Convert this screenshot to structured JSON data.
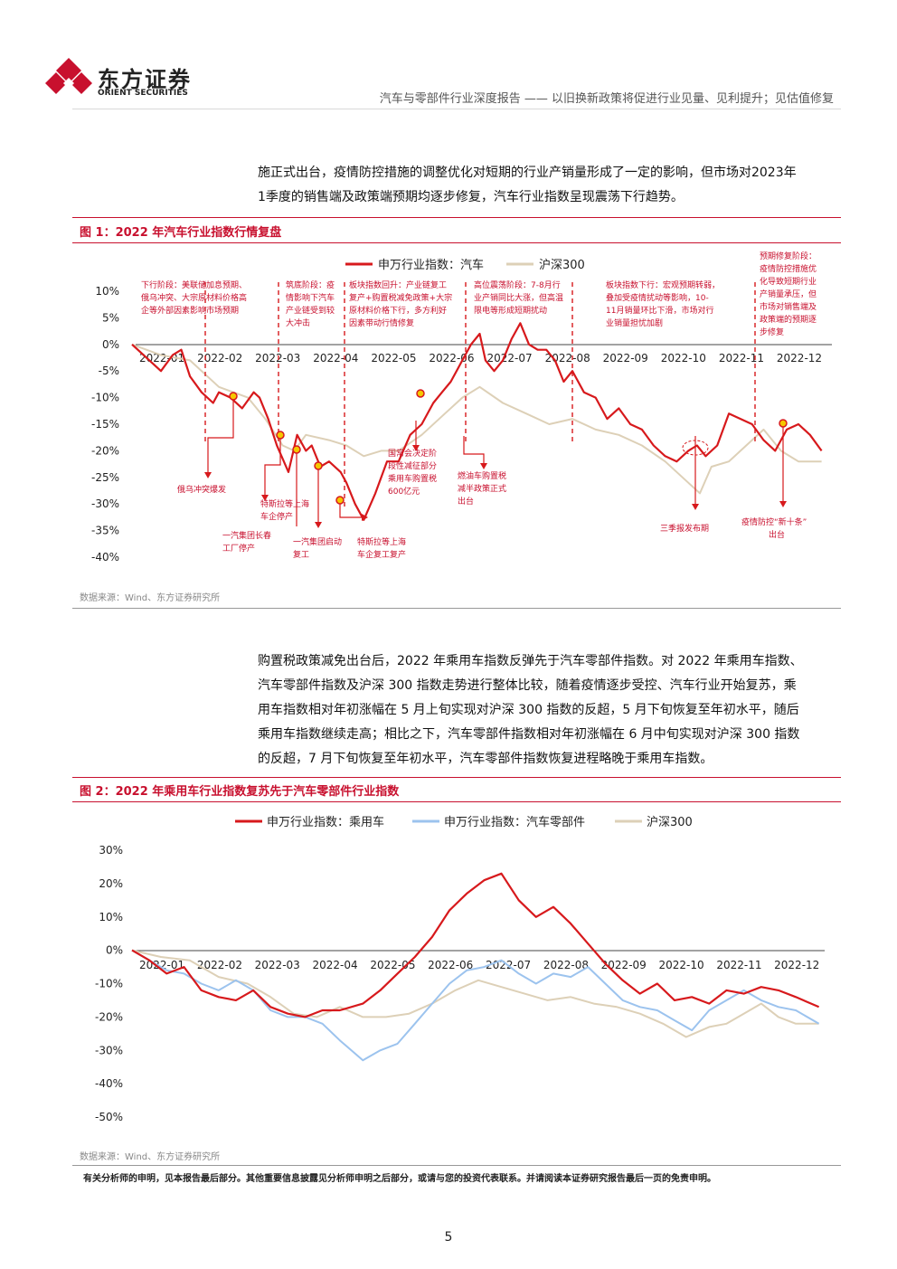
{
  "header": {
    "logo_cn": "东方证券",
    "logo_en": "ORIENT SECURITIES",
    "report_title": "汽车与零部件行业深度报告 —— 以旧换新政策将促进行业见量、见利提升；见估值修复"
  },
  "colors": {
    "brand_red": "#c8102e",
    "hs300": "#ddd0b7",
    "parts_blue": "#9cc3ee"
  },
  "paragraph1": [
    "施正式出台，疫情防控措施的调整优化对短期的行业产销量形成了一定的影响，但市场对2023年",
    "1季度的销售端及政策端预期均逐步修复，汽车行业指数呈现震荡下行趋势。"
  ],
  "figure1": {
    "title": "图 1：2022 年汽车行业指数行情复盘",
    "source": "数据来源：Wind、东方证券研究所"
  },
  "paragraph2": [
    "购置税政策减免出台后，2022 年乘用车指数反弹先于汽车零部件指数。对 2022 年乘用车指数、",
    "汽车零部件指数及沪深 300 指数走势进行整体比较，随着疫情逐步受控、汽车行业开始复苏，乘",
    "用车指数相对年初涨幅在 5 月上旬实现对沪深 300 指数的反超，5 月下旬恢复至年初水平，随后",
    "乘用车指数继续走高；相比之下，汽车零部件指数相对年初涨幅在 6 月中旬实现对沪深 300 指数",
    "的反超，7 月下旬恢复至年初水平，汽车零部件指数恢复进程略晚于乘用车指数。"
  ],
  "figure2": {
    "title": "图 2：2022 年乘用车行业指数复苏先于汽车零部件行业指数",
    "source": "数据来源：Wind、东方证券研究所"
  },
  "footer": {
    "disclaimer": "有关分析师的申明，见本报告最后部分。其他重要信息披露见分析师申明之后部分，或请与您的投资代表联系。并请阅读本证券研究报告最后一页的免责申明。",
    "page_number": "5"
  },
  "chart_data": [
    {
      "type": "line",
      "x_ticks": [
        "2022-01",
        "2022-02",
        "2022-03",
        "2022-04",
        "2022-05",
        "2022-06",
        "2022-07",
        "2022-08",
        "2022-09",
        "2022-10",
        "2022-11",
        "2022-12"
      ],
      "y_ticks": [
        "10%",
        "5%",
        "0%",
        "-5%",
        "-10%",
        "-15%",
        "-20%",
        "-25%",
        "-30%",
        "-35%",
        "-40%"
      ],
      "ylim": [
        -40,
        10
      ],
      "legend_position": "top",
      "series": [
        {
          "name": "申万行业指数：汽车",
          "color": "#d7191c",
          "x": [
            0,
            0.3,
            0.5,
            0.7,
            0.85,
            1.0,
            1.2,
            1.4,
            1.5,
            1.7,
            1.9,
            2.1,
            2.2,
            2.35,
            2.5,
            2.7,
            2.85,
            3.0,
            3.1,
            3.25,
            3.4,
            3.6,
            3.7,
            3.85,
            4.0,
            4.2,
            4.4,
            4.6,
            4.8,
            5.0,
            5.2,
            5.35,
            5.5,
            5.7,
            5.85,
            6.0,
            6.1,
            6.25,
            6.4,
            6.55,
            6.7,
            6.85,
            7.0,
            7.15,
            7.3,
            7.45,
            7.6,
            7.8,
            8.0,
            8.2,
            8.4,
            8.6,
            8.8,
            9.0,
            9.2,
            9.4,
            9.6,
            9.75,
            9.9,
            10.1,
            10.3,
            10.5,
            10.7,
            10.9,
            11.1,
            11.3,
            11.5,
            11.7,
            11.9
          ],
          "y": [
            0,
            -3,
            -5,
            -2,
            -1,
            -6,
            -9,
            -11,
            -9,
            -10,
            -12,
            -9,
            -10,
            -14,
            -19,
            -24,
            -17,
            -20,
            -19,
            -23,
            -22,
            -24,
            -26,
            -30,
            -33,
            -28,
            -22,
            -22,
            -17,
            -15,
            -11,
            -9,
            -7,
            -3,
            0,
            2,
            -3,
            -5,
            -3,
            1,
            4,
            0,
            -1,
            -1,
            -3,
            -7,
            -5,
            -9,
            -10,
            -14,
            -12,
            -15,
            -16,
            -19,
            -21,
            -22,
            -20,
            -19,
            -21,
            -19,
            -13,
            -14,
            -15,
            -18,
            -20,
            -16,
            -15,
            -17,
            -20
          ]
        },
        {
          "name": "沪深300",
          "color": "#ddd0b7",
          "x": [
            0,
            0.5,
            1.0,
            1.5,
            2.0,
            2.3,
            2.6,
            2.8,
            3.0,
            3.4,
            3.7,
            4.0,
            4.3,
            4.6,
            5.0,
            5.4,
            5.7,
            6.0,
            6.4,
            6.8,
            7.2,
            7.6,
            8.0,
            8.4,
            8.8,
            9.2,
            9.6,
            9.8,
            10.0,
            10.3,
            10.6,
            10.9,
            11.2,
            11.5,
            11.9
          ],
          "y": [
            0,
            -2,
            -3,
            -8,
            -10,
            -14,
            -19,
            -20,
            -17,
            -18,
            -19,
            -21,
            -20,
            -20,
            -17,
            -13,
            -10,
            -8,
            -11,
            -13,
            -15,
            -14,
            -16,
            -17,
            -19,
            -22,
            -26,
            -28,
            -23,
            -22,
            -19,
            -16,
            -20,
            -22,
            -22
          ]
        }
      ]
    },
    {
      "type": "line",
      "x_ticks": [
        "2022-01",
        "2022-02",
        "2022-03",
        "2022-04",
        "2022-05",
        "2022-06",
        "2022-07",
        "2022-08",
        "2022-09",
        "2022-10",
        "2022-11",
        "2022-12"
      ],
      "y_ticks": [
        "30%",
        "20%",
        "10%",
        "0%",
        "-10%",
        "-20%",
        "-30%",
        "-40%",
        "-50%"
      ],
      "ylim": [
        -50,
        30
      ],
      "legend_position": "top",
      "series": [
        {
          "name": "申万行业指数：乘用车",
          "color": "#d7191c",
          "x": [
            0,
            0.3,
            0.6,
            0.9,
            1.2,
            1.5,
            1.8,
            2.1,
            2.4,
            2.7,
            3.0,
            3.3,
            3.6,
            4.0,
            4.3,
            4.6,
            4.9,
            5.2,
            5.5,
            5.8,
            6.1,
            6.4,
            6.7,
            7.0,
            7.3,
            7.6,
            7.9,
            8.2,
            8.5,
            8.8,
            9.1,
            9.4,
            9.7,
            10.0,
            10.3,
            10.6,
            10.9,
            11.2,
            11.5,
            11.9
          ],
          "y": [
            0,
            -3,
            -7,
            -5,
            -12,
            -14,
            -15,
            -12,
            -17,
            -19,
            -20,
            -18,
            -18,
            -16,
            -12,
            -7,
            -2,
            4,
            12,
            17,
            21,
            23,
            15,
            10,
            13,
            8,
            2,
            -4,
            -9,
            -13,
            -10,
            -15,
            -14,
            -16,
            -12,
            -13,
            -11,
            -12,
            -14,
            -17
          ]
        },
        {
          "name": "申万行业指数：汽车零部件",
          "color": "#9cc3ee",
          "x": [
            0,
            0.3,
            0.6,
            0.9,
            1.2,
            1.5,
            1.8,
            2.1,
            2.4,
            2.7,
            3.0,
            3.3,
            3.6,
            4.0,
            4.3,
            4.6,
            4.9,
            5.2,
            5.5,
            5.8,
            6.1,
            6.4,
            6.7,
            7.0,
            7.3,
            7.6,
            7.9,
            8.2,
            8.5,
            8.8,
            9.1,
            9.4,
            9.7,
            10.0,
            10.3,
            10.6,
            10.9,
            11.2,
            11.5,
            11.9
          ],
          "y": [
            0,
            -3,
            -6,
            -7,
            -10,
            -12,
            -9,
            -12,
            -18,
            -20,
            -20,
            -22,
            -27,
            -33,
            -30,
            -28,
            -22,
            -16,
            -10,
            -6,
            -5,
            -3,
            -7,
            -10,
            -7,
            -8,
            -5,
            -10,
            -15,
            -17,
            -18,
            -21,
            -24,
            -18,
            -15,
            -12,
            -15,
            -17,
            -18,
            -22
          ]
        },
        {
          "name": "沪深300",
          "color": "#ddd0b7",
          "x": [
            0,
            0.5,
            1.0,
            1.5,
            2.0,
            2.4,
            2.8,
            3.2,
            3.6,
            4.0,
            4.4,
            4.8,
            5.2,
            5.6,
            6.0,
            6.4,
            6.8,
            7.2,
            7.6,
            8.0,
            8.4,
            8.8,
            9.2,
            9.6,
            10.0,
            10.3,
            10.6,
            10.9,
            11.2,
            11.5,
            11.9
          ],
          "y": [
            0,
            -2,
            -3,
            -8,
            -10,
            -14,
            -19,
            -20,
            -17,
            -20,
            -20,
            -19,
            -16,
            -12,
            -9,
            -11,
            -13,
            -15,
            -14,
            -16,
            -17,
            -19,
            -22,
            -26,
            -23,
            -22,
            -19,
            -16,
            -20,
            -22,
            -22
          ]
        }
      ]
    }
  ],
  "figure1_annotations": {
    "phase_boxes": [
      "下行阶段：美联储加息预期、俄乌冲突、大宗原材料价格高企等外部因素影响市场预期",
      "筑底阶段：疫情影响下汽车产业链受到较大冲击",
      "板块指数回升：产业链复工复产+购置税减免政策+大宗原材料价格下行，多方利好因素带动行情修复",
      "高位震荡阶段：7-8月行业产销同比大涨，但高温限电等形成短期扰动",
      "板块指数下行：宏观预期转弱，叠加受疫情扰动等影响，10-11月销量环比下滑，市场对行业销量担忧加剧",
      "预期修复阶段：疫情防控措施优化导致短期行业产销量承压，但市场对销售端及政策端的预期逐步修复"
    ],
    "events": [
      "俄乌冲突爆发",
      "特斯拉等上海车企停产",
      "一汽集团长春工厂停产",
      "一汽集团启动复工",
      "特斯拉等上海车企复工复产",
      "国常会决定阶段性减征部分乘用车购置税600亿元",
      "燃油车购置税减半政策正式出台",
      "三季报发布期",
      "疫情防控“新十条”出台"
    ]
  }
}
